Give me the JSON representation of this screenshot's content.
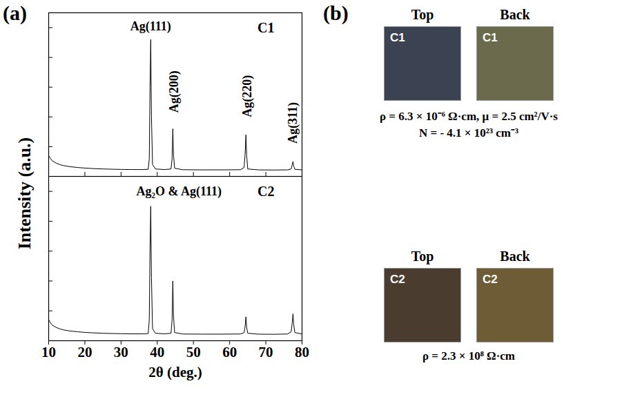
{
  "chart_data": [
    {
      "type": "line",
      "title": "C1",
      "ylabel": "Intensity (a.u.)",
      "panel_label": "(a)",
      "x": [
        10,
        10.5,
        11,
        12,
        13,
        14,
        16,
        18,
        20,
        22,
        25,
        28,
        30,
        33,
        36,
        37.5,
        37.8,
        38.0,
        38.2,
        38.4,
        38.7,
        39.5,
        42,
        43.8,
        44.1,
        44.3,
        44.5,
        44.8,
        47,
        52,
        58,
        63,
        64.0,
        64.3,
        64.5,
        64.7,
        65.0,
        68,
        72,
        76,
        77.0,
        77.3,
        77.5,
        77.7,
        78.0,
        80
      ],
      "values": [
        14,
        12,
        10.5,
        9,
        8,
        7.3,
        6.5,
        6,
        5.6,
        5.3,
        5,
        4.8,
        4.7,
        4.6,
        4.6,
        4.8,
        12,
        60,
        92,
        40,
        8,
        5,
        4.6,
        5,
        12,
        32,
        14,
        5.5,
        4.5,
        4.4,
        4.4,
        4.5,
        6,
        16,
        28,
        14,
        5,
        4.4,
        4.3,
        4.4,
        5,
        8,
        10,
        7,
        4.8,
        4.4
      ],
      "color": "#000000",
      "xlim": [
        10,
        80
      ],
      "xticks": [
        10,
        20,
        30,
        40,
        50,
        60,
        70,
        80
      ],
      "ylim": [
        0,
        110
      ],
      "yticks": [
        20,
        40,
        60,
        80,
        100
      ],
      "tick_labels": false,
      "annotations": [
        {
          "text": "Ag(111)",
          "x": 38.2,
          "y": 101
        },
        {
          "text": "Ag(200)",
          "x": 44.6,
          "y": 57,
          "orientation": "vertical"
        },
        {
          "text": "Ag(220)",
          "x": 64.8,
          "y": 54,
          "orientation": "vertical"
        },
        {
          "text": "Ag(311)",
          "x": 77.5,
          "y": 36,
          "orientation": "vertical"
        }
      ]
    },
    {
      "type": "line",
      "title": "C2",
      "xlabel": "2θ (deg.)",
      "x": [
        10,
        10.5,
        11,
        12,
        13,
        14,
        16,
        18,
        20,
        22,
        25,
        28,
        30,
        33,
        36,
        37.5,
        37.8,
        38.0,
        38.2,
        38.4,
        38.7,
        39.5,
        42,
        43.8,
        44.1,
        44.3,
        44.5,
        44.8,
        47,
        52,
        58,
        63,
        64.0,
        64.3,
        64.5,
        64.7,
        65.0,
        68,
        72,
        76,
        77.0,
        77.3,
        77.5,
        77.7,
        78.0,
        80
      ],
      "values": [
        14,
        12,
        10.5,
        9,
        8,
        7.3,
        6.5,
        6,
        5.6,
        5.3,
        5,
        4.8,
        4.7,
        4.6,
        4.6,
        4.8,
        14,
        62,
        90,
        42,
        8,
        5,
        4.6,
        5,
        14,
        40,
        16,
        5.5,
        4.5,
        4.4,
        4.4,
        4.5,
        5.5,
        10,
        16,
        9,
        5,
        4.4,
        4.3,
        4.5,
        6,
        12,
        18,
        11,
        5.5,
        4.5
      ],
      "color": "#000000",
      "xlim": [
        10,
        80
      ],
      "xticks": [
        10,
        20,
        30,
        40,
        50,
        60,
        70,
        80
      ],
      "ylim": [
        0,
        110
      ],
      "yticks": [
        20,
        40,
        60,
        80,
        100
      ],
      "tick_labels": "x",
      "annotations": [
        {
          "text": "Ag₂O & Ag(111)",
          "x": 46,
          "y": 100
        }
      ]
    }
  ],
  "photos": {
    "label": "(b)",
    "samples": [
      {
        "images": [
          {
            "view": "Top",
            "label": "C1",
            "color": "#3b4252"
          },
          {
            "view": "Back",
            "label": "C1",
            "color": "#6b6a4c"
          }
        ],
        "properties": [
          "ρ = 6.3 × 10⁻⁶ Ω·cm, μ = 2.5 cm²/V·s",
          "N = - 4.1 × 10²³ cm⁻³"
        ]
      },
      {
        "images": [
          {
            "view": "Top",
            "label": "C2",
            "color": "#4a3c2e"
          },
          {
            "view": "Back",
            "label": "C2",
            "color": "#6d5c35"
          }
        ],
        "properties": [
          "ρ = 2.3 × 10⁸ Ω·cm"
        ]
      }
    ]
  }
}
